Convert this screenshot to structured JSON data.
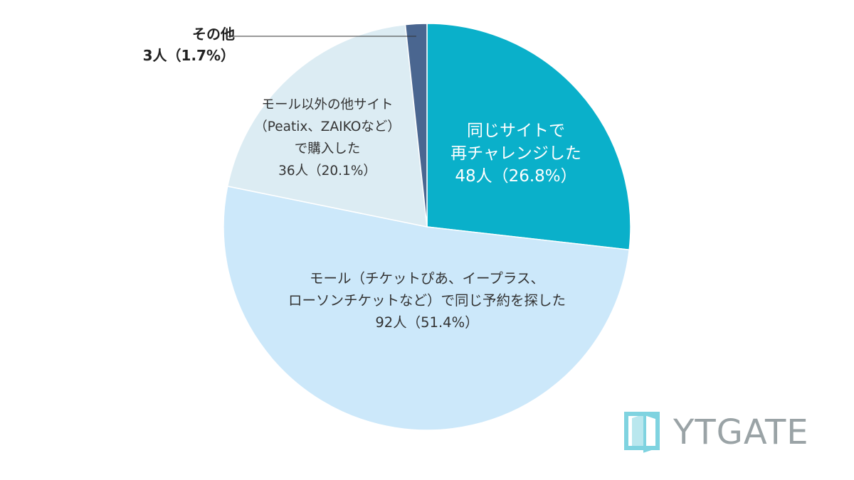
{
  "chart_data": {
    "type": "pie",
    "slices": [
      {
        "label_lines": [
          "同じサイトで",
          "再チャレンジした"
        ],
        "count_label": "48人（26.8%）",
        "value": 26.8,
        "count": 48,
        "color": "#0ab0ca"
      },
      {
        "label_lines": [
          "モール（チケットぴあ、イープラス、",
          "ローソンチケットなど）で同じ予約を探した"
        ],
        "count_label": "92人（51.4%）",
        "value": 51.4,
        "count": 92,
        "color": "#cce8fa"
      },
      {
        "label_lines": [
          "モール以外の他サイト",
          "（Peatix、ZAIKOなど）",
          "で購入した"
        ],
        "count_label": "36人（20.1%）",
        "value": 20.1,
        "count": 36,
        "color": "#dcecf3"
      },
      {
        "label_lines": [
          "その他"
        ],
        "count_label": "3人（1.7%）",
        "value": 1.7,
        "count": 3,
        "color": "#4a6690"
      }
    ],
    "start_angle": "12 o'clock",
    "direction": "clockwise"
  },
  "logo": {
    "text": "YTGATE",
    "color": "#9aa3a6",
    "accent": "#7fd3e0"
  }
}
